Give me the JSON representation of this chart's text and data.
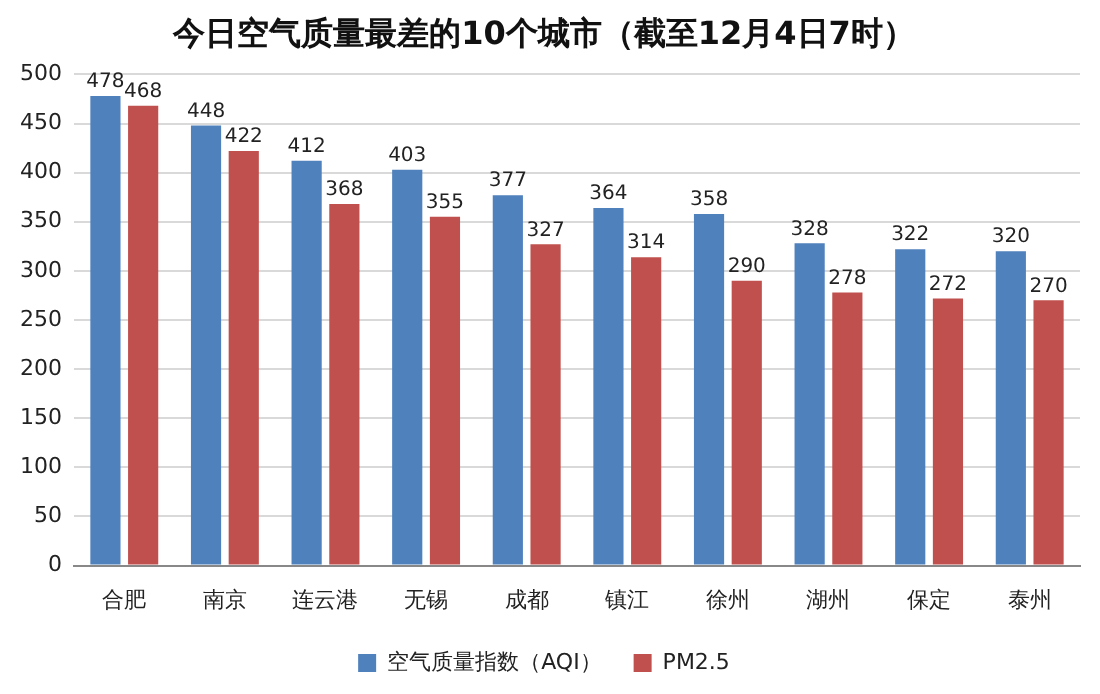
{
  "chart_data": {
    "type": "bar",
    "title": "今日空气质量最差的10个城市（截至12月4日7时）",
    "categories": [
      "合肥",
      "南京",
      "连云港",
      "无锡",
      "成都",
      "镇江",
      "徐州",
      "湖州",
      "保定",
      "泰州"
    ],
    "series": [
      {
        "name": "空气质量指数（AQI）",
        "color": "#4f81bd",
        "values": [
          478,
          448,
          412,
          403,
          377,
          364,
          358,
          328,
          322,
          320
        ]
      },
      {
        "name": "PM2.5",
        "color": "#c0504d",
        "values": [
          468,
          422,
          368,
          355,
          327,
          314,
          290,
          278,
          272,
          270
        ]
      }
    ],
    "ylim": [
      0,
      500
    ],
    "yticks": [
      0,
      50,
      100,
      150,
      200,
      250,
      300,
      350,
      400,
      450,
      500
    ],
    "grid": "y",
    "legend": "bottom",
    "data_labels": true
  }
}
